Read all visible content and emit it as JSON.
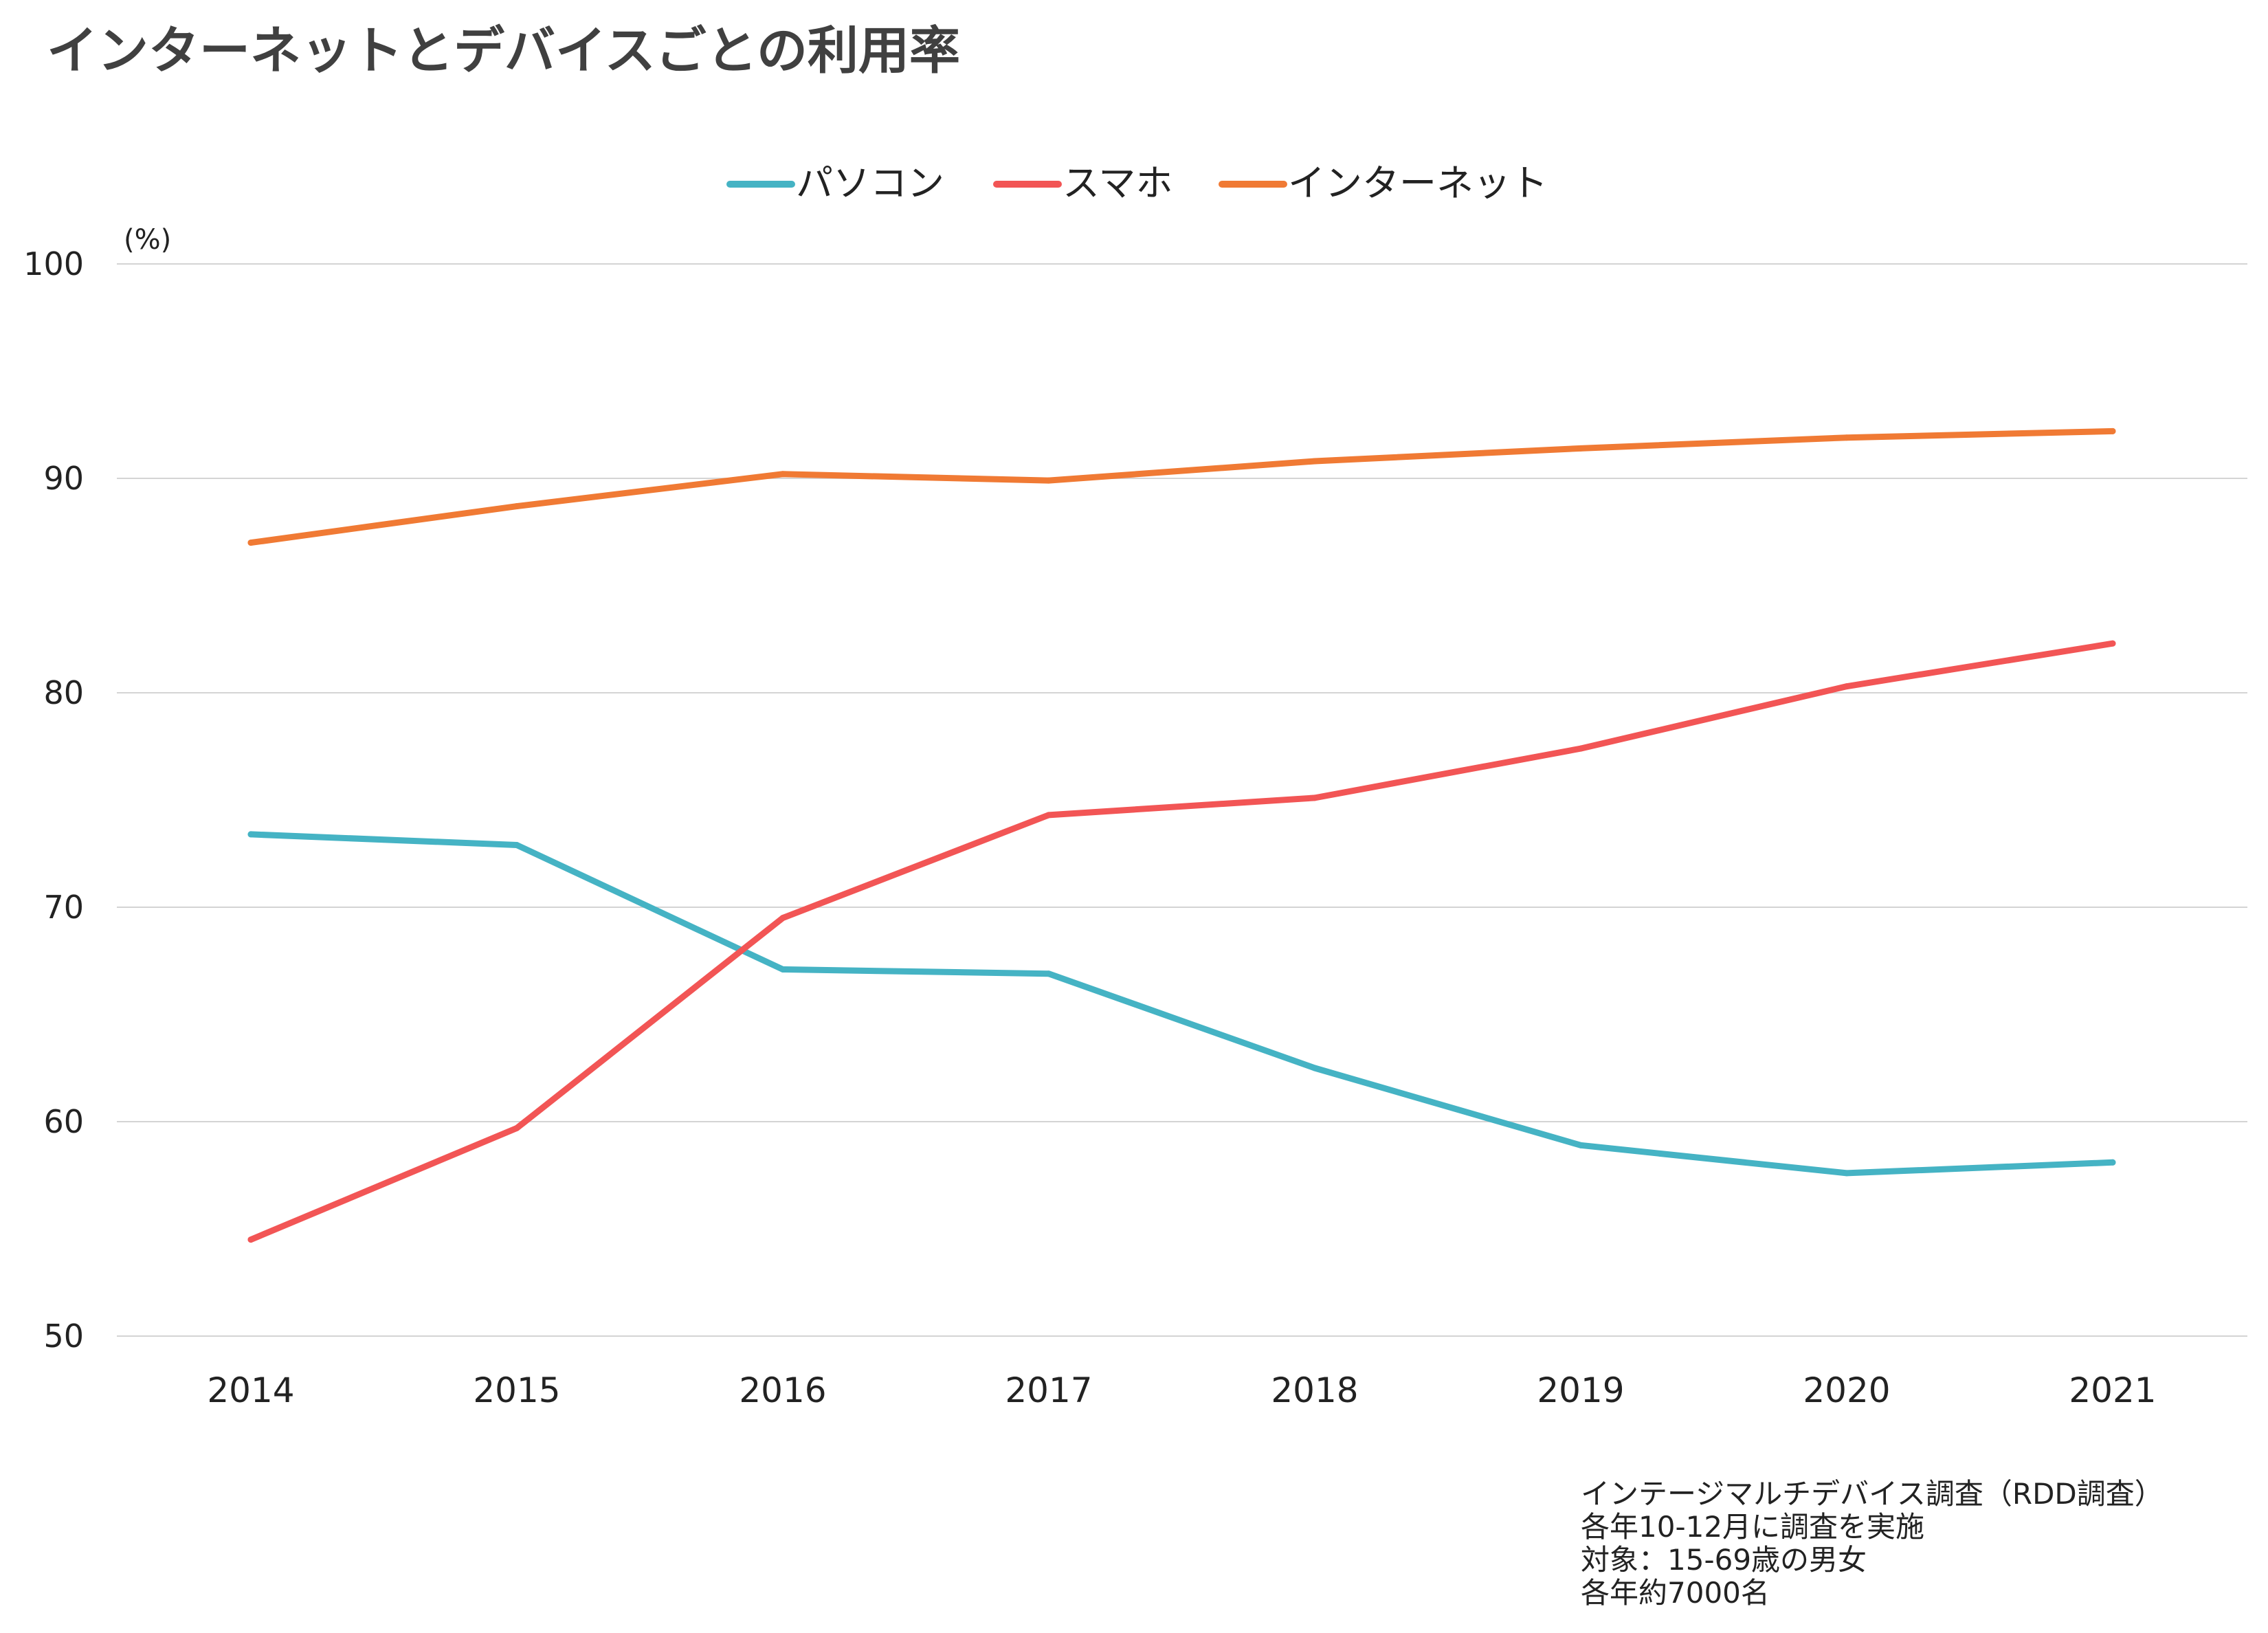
{
  "chart_data": {
    "type": "line",
    "title": "インターネットとデバイスごとの利用率",
    "ylabel": "(%)",
    "xlabel": "",
    "categories": [
      "2014",
      "2015",
      "2016",
      "2017",
      "2018",
      "2019",
      "2020",
      "2021"
    ],
    "ylim": [
      50,
      100
    ],
    "yticks": [
      "50",
      "60",
      "70",
      "80",
      "90",
      "100"
    ],
    "grid": true,
    "legend_position": "top-center",
    "series": [
      {
        "name": "パソコン",
        "color": "#45b3c4",
        "values": [
          73.4,
          72.9,
          67.1,
          66.9,
          62.5,
          58.9,
          57.6,
          58.1
        ]
      },
      {
        "name": "スマホ",
        "color": "#f25555",
        "values": [
          54.5,
          59.7,
          69.5,
          74.3,
          75.1,
          77.4,
          80.3,
          82.3
        ]
      },
      {
        "name": "インターネット",
        "color": "#f07a34",
        "values": [
          87.0,
          88.7,
          90.2,
          89.9,
          90.8,
          91.4,
          91.9,
          92.2
        ]
      }
    ]
  },
  "notes": [
    "インテージマルチデバイス調査（RDD調査）",
    "各年10-12月に調査を実施",
    "対象：15-69歳の男女",
    "各年約7000名"
  ]
}
